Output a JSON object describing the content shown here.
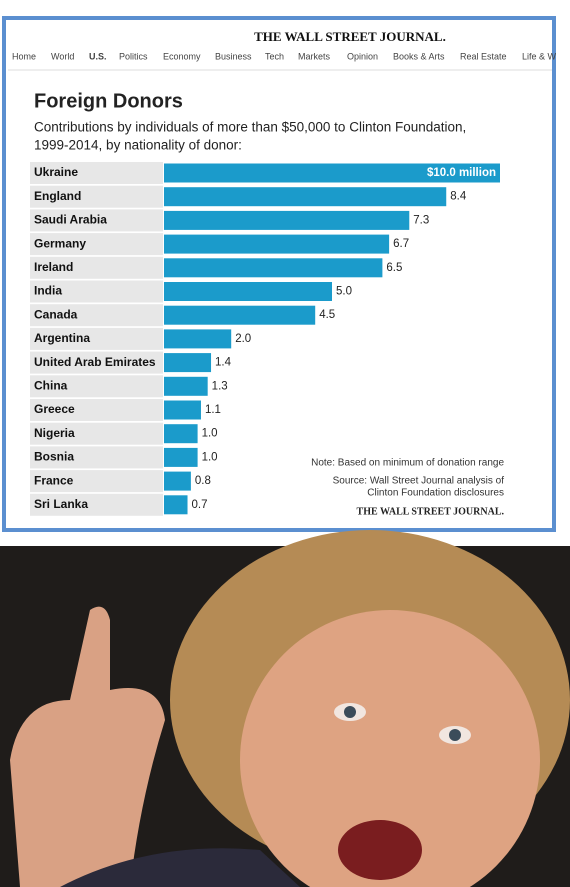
{
  "header": {
    "masthead": "THE WALL STREET JOURNAL.",
    "nav": [
      "Home",
      "World",
      "U.S.",
      "Politics",
      "Economy",
      "Business",
      "Tech",
      "Markets",
      "Opinion",
      "Books & Arts",
      "Real Estate",
      "Life & W"
    ]
  },
  "chart_data": {
    "type": "bar",
    "orientation": "horizontal",
    "title": "Foreign Donors",
    "subtitle": [
      "Contributions by individuals of more than $50,000 to Clinton Foundation,",
      "1999-2014, by nationality of donor:"
    ],
    "categories": [
      "Ukraine",
      "England",
      "Saudi Arabia",
      "Germany",
      "Ireland",
      "India",
      "Canada",
      "Argentina",
      "United Arab Emirates",
      "China",
      "Greece",
      "Nigeria",
      "Bosnia",
      "France",
      "Sri Lanka"
    ],
    "values": [
      10,
      8.4,
      7.3,
      6.7,
      6.5,
      5,
      4.5,
      2,
      1.4,
      1.3,
      1.1,
      1,
      1,
      0.8,
      0.7
    ],
    "value_labels": [
      "$10.0 million",
      "8.4",
      "7.3",
      "6.7",
      "6.5",
      "5.0",
      "4.5",
      "2.0",
      "1.4",
      "1.3",
      "1.1",
      "1.0",
      "1.0",
      "0.8",
      "0.7"
    ],
    "color": "#1b9bcb",
    "note": "Note: Based on minimum of donation range",
    "source": [
      "Source: Wall Street Journal analysis of",
      "Clinton Foundation disclosures"
    ],
    "credit": "THE WALL STREET JOURNAL."
  }
}
